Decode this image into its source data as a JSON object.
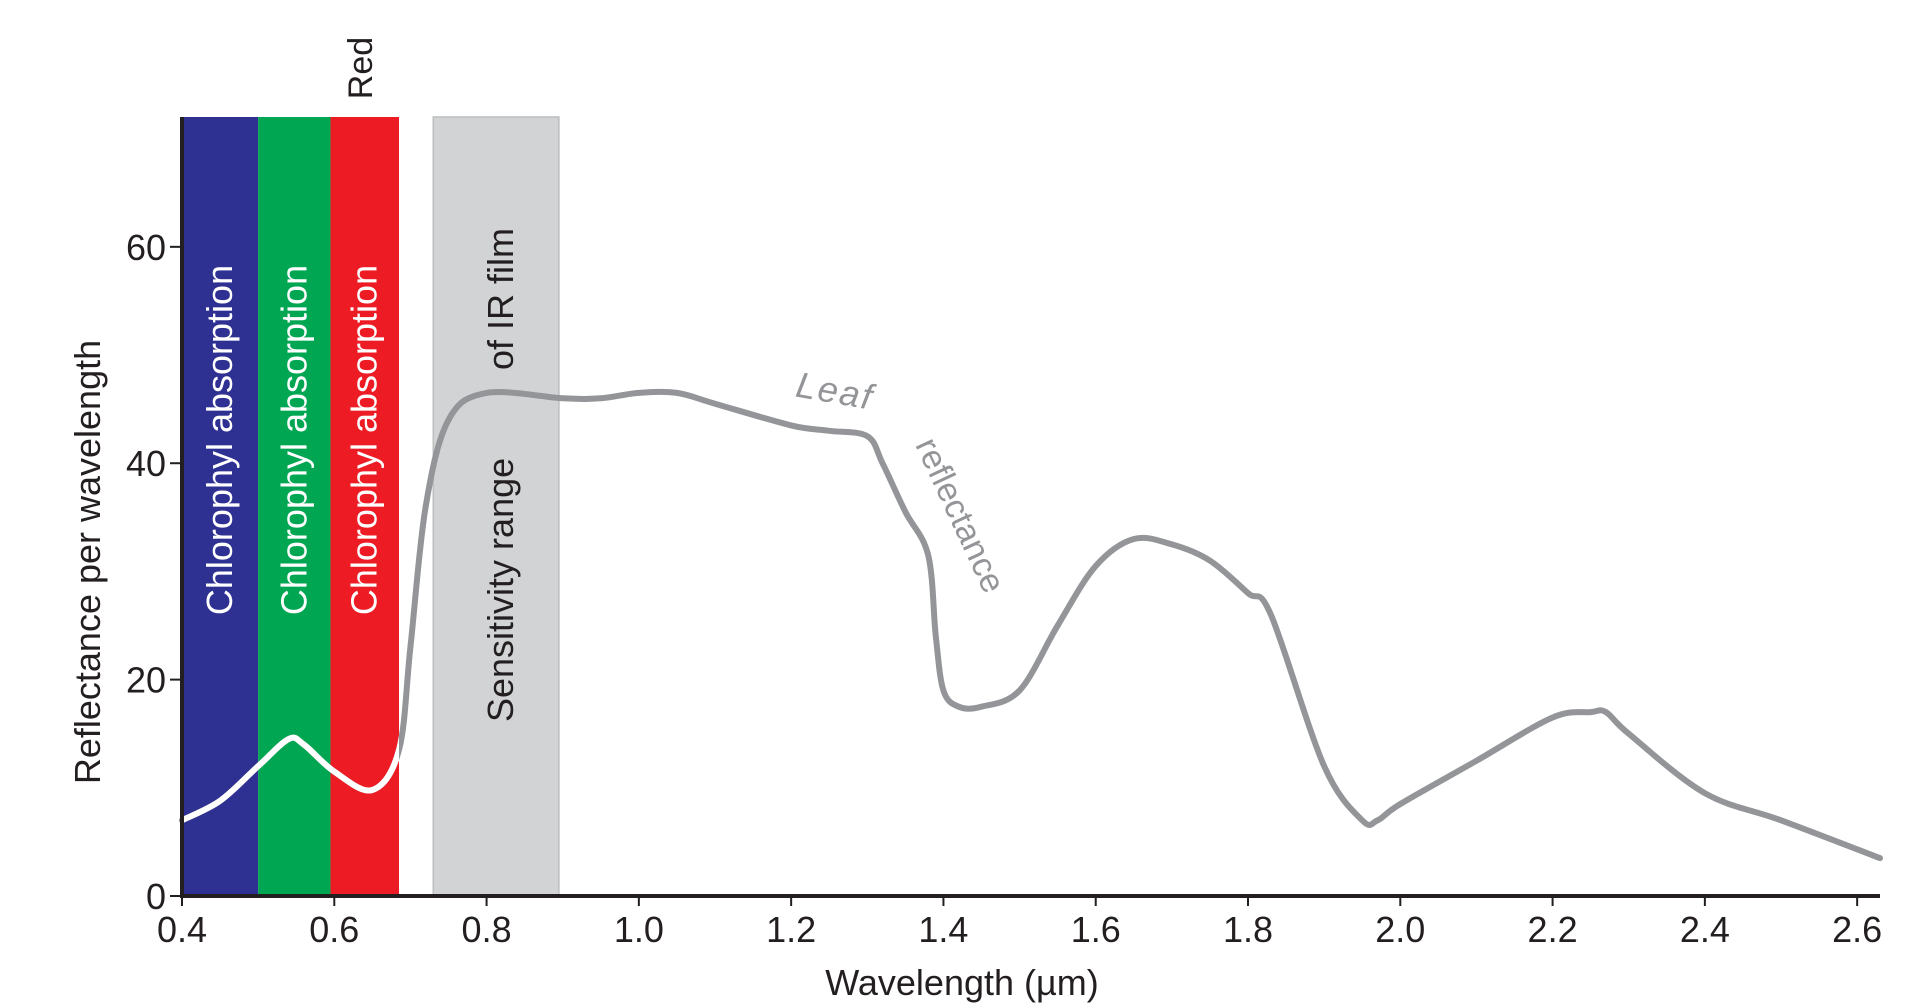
{
  "chart_data": {
    "type": "line",
    "xlabel": "Wavelength (µm)",
    "ylabel": "Reflectance per wavelength",
    "xlim": [
      0.4,
      2.63
    ],
    "ylim": [
      0,
      72
    ],
    "x_ticks": [
      "0.4",
      "0.6",
      "0.8",
      "1.0",
      "1.2",
      "1.4",
      "1.6",
      "1.8",
      "2.0",
      "2.2",
      "2.4",
      "2.6"
    ],
    "x_tick_values": [
      0.4,
      0.6,
      0.8,
      1.0,
      1.2,
      1.4,
      1.6,
      1.8,
      2.0,
      2.2,
      2.4,
      2.6
    ],
    "y_ticks": [
      "0",
      "20",
      "40",
      "60"
    ],
    "y_tick_values": [
      0,
      20,
      40,
      60
    ],
    "grid": false,
    "bands": [
      {
        "label": "Chlorophyl absorption",
        "x_start": 0.4,
        "x_end": 0.5,
        "color": "#2e3192"
      },
      {
        "label": "Chlorophyl absorption",
        "x_start": 0.5,
        "x_end": 0.595,
        "color": "#00a651"
      },
      {
        "label": "Chlorophyl absorption",
        "x_start": 0.595,
        "x_end": 0.685,
        "color": "#ed1c24",
        "top_label": "Red"
      },
      {
        "label_line1": "Sensitivity range",
        "label_line2": "of IR film",
        "x_start": 0.73,
        "x_end": 0.895,
        "color": "#d1d3d4"
      }
    ],
    "series": [
      {
        "label_word1": "Leaf",
        "label_word2": "reflectance",
        "color": "#939598",
        "highlight_color": "#ffffff",
        "x": [
          0.4,
          0.45,
          0.5,
          0.54,
          0.56,
          0.6,
          0.65,
          0.685,
          0.7,
          0.72,
          0.75,
          0.8,
          0.9,
          0.95,
          1.0,
          1.05,
          1.1,
          1.2,
          1.25,
          1.3,
          1.32,
          1.35,
          1.38,
          1.39,
          1.4,
          1.42,
          1.45,
          1.5,
          1.55,
          1.6,
          1.65,
          1.7,
          1.75,
          1.8,
          1.83,
          1.9,
          1.95,
          1.97,
          2.0,
          2.1,
          2.2,
          2.25,
          2.27,
          2.3,
          2.4,
          2.5,
          2.63
        ],
        "y": [
          7,
          8.8,
          12,
          14.5,
          14,
          11.5,
          9.8,
          13.5,
          23,
          36,
          44,
          46.5,
          46,
          46,
          46.5,
          46.5,
          45.5,
          43.5,
          43,
          42.5,
          40,
          35.5,
          31.5,
          24,
          19,
          17.5,
          17.5,
          19,
          25,
          30.5,
          33,
          32.5,
          31,
          28,
          26,
          12,
          7,
          7,
          8.5,
          12.5,
          16.5,
          17,
          17,
          15,
          9.5,
          7,
          3.5
        ]
      }
    ]
  }
}
